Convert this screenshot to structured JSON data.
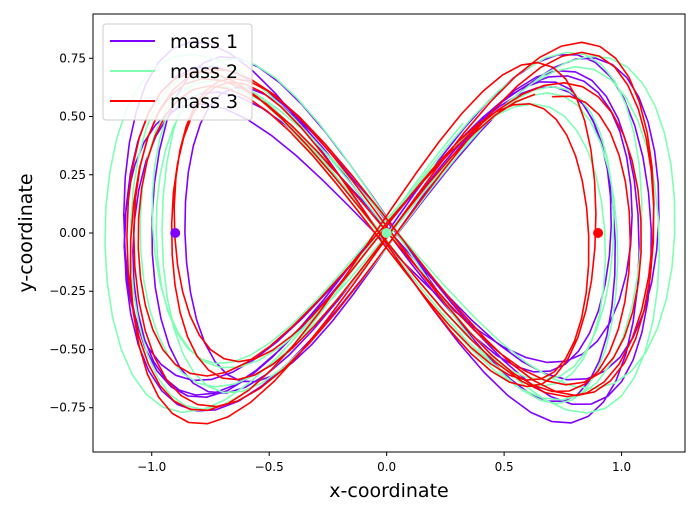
{
  "chart_data": {
    "type": "line",
    "title": "",
    "xlabel": "x-coordinate",
    "ylabel": "y-coordinate",
    "xlim": [
      -1.25,
      1.27
    ],
    "ylim": [
      -0.94,
      0.94
    ],
    "xticks": [
      {
        "value": -1.0,
        "label": "−1.0"
      },
      {
        "value": -0.5,
        "label": "−0.5"
      },
      {
        "value": 0.0,
        "label": "0.0"
      },
      {
        "value": 0.5,
        "label": "0.5"
      },
      {
        "value": 1.0,
        "label": "1.0"
      }
    ],
    "yticks": [
      {
        "value": -0.75,
        "label": "−0.75"
      },
      {
        "value": -0.5,
        "label": "−0.50"
      },
      {
        "value": -0.25,
        "label": "−0.25"
      },
      {
        "value": 0.0,
        "label": "0.00"
      },
      {
        "value": 0.25,
        "label": "0.25"
      },
      {
        "value": 0.5,
        "label": "0.50"
      },
      {
        "value": 0.75,
        "label": "0.75"
      }
    ],
    "grid": false,
    "legend_position": "top-left",
    "series": [
      {
        "name": "mass 1",
        "color": "#8000ff",
        "start": [
          -0.9,
          0.0
        ],
        "end": [
          -0.9,
          0.0
        ]
      },
      {
        "name": "mass 2",
        "color": "#80ffb4",
        "start": [
          0.0,
          0.0
        ],
        "end": [
          0.0,
          0.0
        ]
      },
      {
        "name": "mass 3",
        "color": "#ff0000",
        "start": [
          0.9,
          0.0
        ],
        "end": [
          0.9,
          0.0
        ]
      }
    ],
    "curve": {
      "shape": "figure-eight",
      "x_amplitude": 0.98,
      "y_amplitude": 0.62,
      "x_range": [
        -1.15,
        1.15
      ],
      "y_range": [
        -0.85,
        0.85
      ],
      "loops": 6
    }
  }
}
